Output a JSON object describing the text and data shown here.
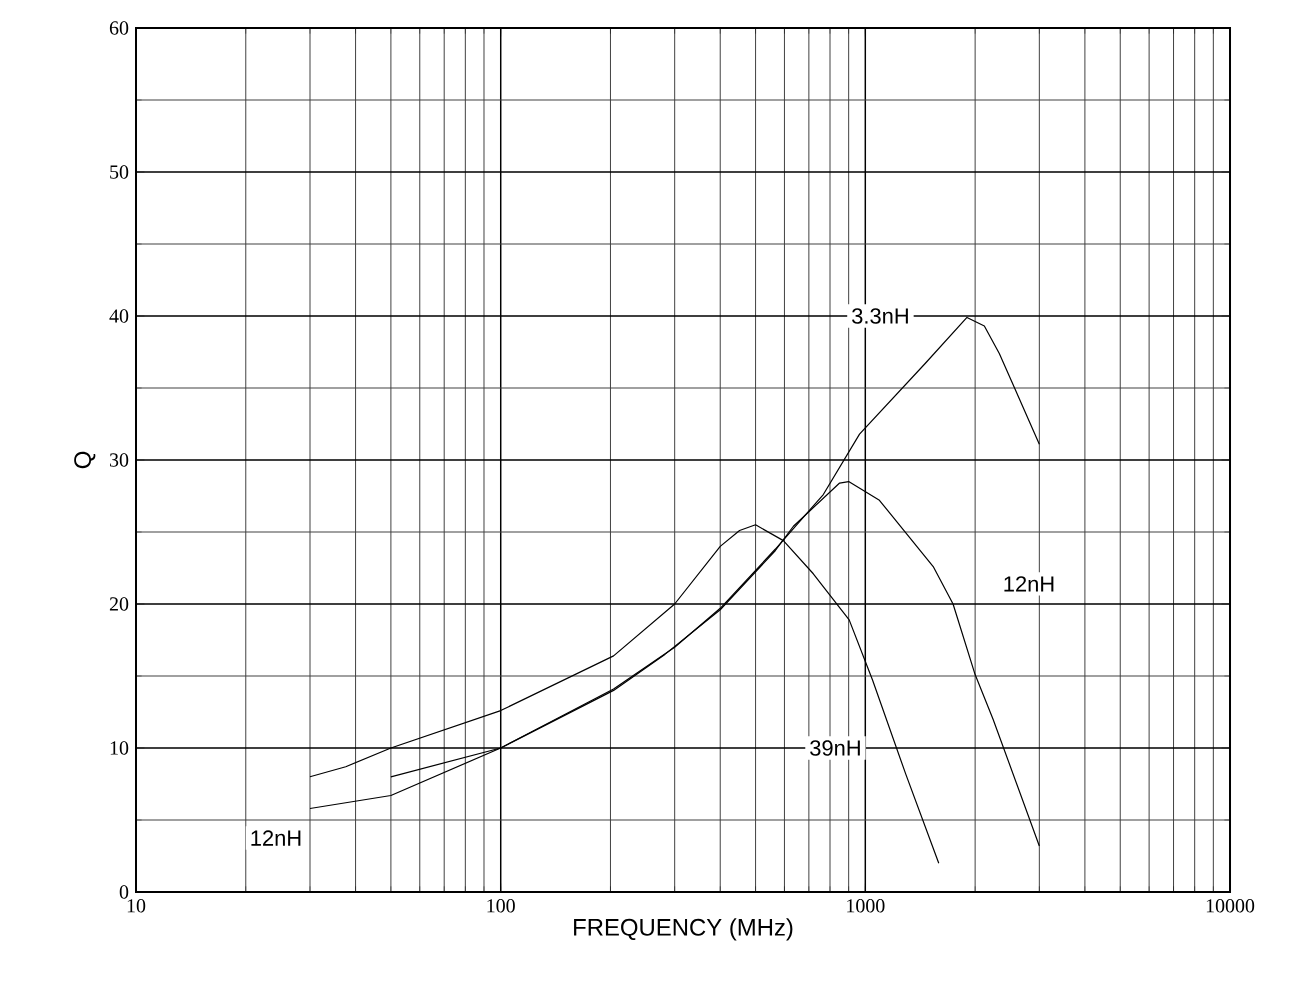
{
  "chart_data": {
    "type": "line",
    "xlabel": "FREQUENCY (MHz)",
    "ylabel": "Q",
    "log": "x",
    "grid": true,
    "marker": "none",
    "line_style": "solid",
    "xlim": [
      10,
      10000
    ],
    "xticks": [
      10,
      100,
      1000,
      10000
    ],
    "ylim": [
      0,
      60
    ],
    "yticks": [
      0,
      10,
      20,
      30,
      40,
      50,
      60
    ],
    "series": [
      {
        "color": "#000000",
        "x": [
          30,
          37.6,
          50,
          100,
          204,
          300,
          400,
          452,
          500,
          596,
          720,
          903,
          1047,
          1290,
          1590
        ],
        "values": [
          8.0,
          8.7,
          10.0,
          12.6,
          16.4,
          20.0,
          24.0,
          25.1,
          25.5,
          24.4,
          22.1,
          18.9,
          14.7,
          8.2,
          2.0
        ]
      },
      {
        "color": "#000000",
        "x": [
          30,
          50,
          100,
          204,
          282,
          400,
          566,
          635,
          850,
          900,
          1093,
          1535,
          1740,
          2000,
          2240,
          3000
        ],
        "values": [
          5.8,
          6.7,
          10.0,
          14.0,
          16.5,
          19.6,
          23.7,
          25.4,
          28.4,
          28.5,
          27.2,
          22.6,
          20.0,
          15.1,
          12.0,
          3.2
        ]
      },
      {
        "color": "#000000",
        "x": [
          50,
          100,
          204,
          300,
          400,
          566,
          767,
          964,
          1459,
          1900,
          2120,
          2330,
          3000
        ],
        "values": [
          8.0,
          10.0,
          14.1,
          17.0,
          19.7,
          23.8,
          27.6,
          31.8,
          36.7,
          39.9,
          39.3,
          37.4,
          31.1
        ]
      }
    ],
    "annotations": [
      {
        "text": "3.3nH",
        "x": 1100,
        "y": 40
      },
      {
        "text": "12nH",
        "x": 2810,
        "y": 21.4
      },
      {
        "text": "39nH",
        "x": 828,
        "y": 10
      },
      {
        "text": "12nH",
        "x": 24.2,
        "y": 3.75
      }
    ]
  }
}
